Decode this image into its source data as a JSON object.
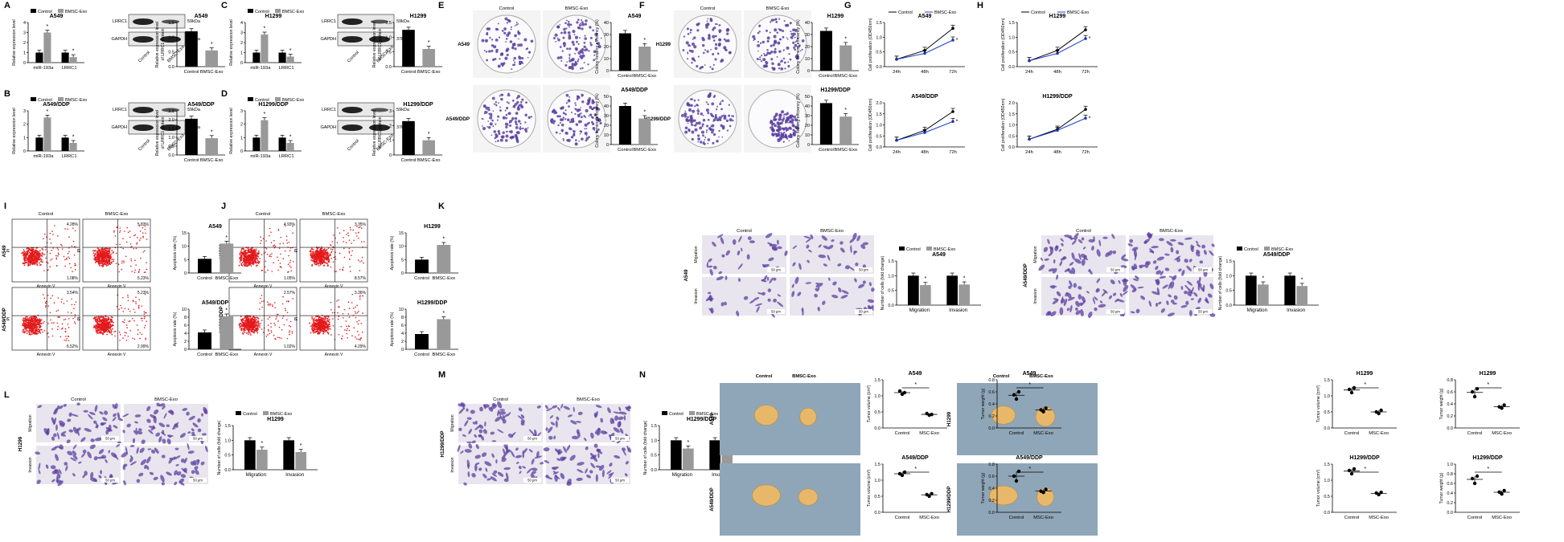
{
  "legend": {
    "control": "Control",
    "bmsc": "BMSC-Exo"
  },
  "panel_labels": [
    "A",
    "B",
    "C",
    "D",
    "E",
    "F",
    "G",
    "H",
    "I",
    "J",
    "K",
    "L",
    "M",
    "N"
  ],
  "chart_data": [
    {
      "id": "A_bar",
      "type": "bar",
      "title": "A549",
      "ylabel": "Relative expression level",
      "categories": [
        "miR-193a",
        "LRRC1"
      ],
      "series": [
        {
          "name": "Control",
          "values": [
            1.0,
            1.0
          ]
        },
        {
          "name": "BMSC-Exo",
          "values": [
            3.0,
            0.55
          ]
        }
      ],
      "ylim": [
        0,
        4
      ],
      "yticks": [
        "0",
        "1",
        "2",
        "3",
        "4"
      ]
    },
    {
      "id": "A_quant",
      "type": "bar",
      "title": "A549",
      "ylabel": "Relative expression level of LRRC1 protein",
      "categories": [
        "Control",
        "BMSC-Exo"
      ],
      "values": [
        1.2,
        0.55
      ],
      "ylim": [
        0,
        1.5
      ],
      "yticks": [
        "0.0",
        "0.5",
        "1.0",
        "1.5"
      ]
    },
    {
      "id": "B_bar",
      "type": "bar",
      "title": "A549/DDP",
      "ylabel": "Relative expression level",
      "categories": [
        "miR-193a",
        "LRRC1"
      ],
      "series": [
        {
          "name": "Control",
          "values": [
            1.0,
            1.0
          ]
        },
        {
          "name": "BMSC-Exo",
          "values": [
            2.5,
            0.6
          ]
        }
      ],
      "ylim": [
        0,
        3
      ],
      "yticks": [
        "0",
        "1",
        "2",
        "3"
      ]
    },
    {
      "id": "B_quant",
      "type": "bar",
      "title": "A549/DDP",
      "ylabel": "Relative expression level of LRRC1 protein",
      "categories": [
        "Control",
        "BMSC-Exo"
      ],
      "values": [
        2.05,
        0.95
      ],
      "ylim": [
        0,
        2.5
      ],
      "yticks": [
        "0.0",
        "0.5",
        "1.0",
        "1.5",
        "2.0",
        "2.5"
      ]
    },
    {
      "id": "C_bar",
      "type": "bar",
      "title": "H1299",
      "ylabel": "Relative expression level",
      "categories": [
        "miR-193a",
        "LRRC1"
      ],
      "series": [
        {
          "name": "Control",
          "values": [
            1.0,
            1.0
          ]
        },
        {
          "name": "BMSC-Exo",
          "values": [
            2.8,
            0.6
          ]
        }
      ],
      "ylim": [
        0,
        4
      ],
      "yticks": [
        "0",
        "1",
        "2",
        "3",
        "4"
      ]
    },
    {
      "id": "C_quant",
      "type": "bar",
      "title": "H1299",
      "ylabel": "Relative expression level of LRRC1 protein",
      "categories": [
        "Control",
        "BMSC-Exo"
      ],
      "values": [
        1.25,
        0.6
      ],
      "ylim": [
        0,
        1.5
      ],
      "yticks": [
        "0.0",
        "0.5",
        "1.0",
        "1.5"
      ]
    },
    {
      "id": "D_bar",
      "type": "bar",
      "title": "H1299/DDP",
      "ylabel": "Relative expression level",
      "categories": [
        "miR-193a",
        "LRRC1"
      ],
      "series": [
        {
          "name": "Control",
          "values": [
            1.0,
            1.0
          ]
        },
        {
          "name": "BMSC-Exo",
          "values": [
            2.3,
            0.6
          ]
        }
      ],
      "ylim": [
        0,
        3
      ],
      "yticks": [
        "0",
        "1",
        "2",
        "3"
      ]
    },
    {
      "id": "D_quant",
      "type": "bar",
      "title": "H1299/DDP",
      "ylabel": "Relative expression level of LRRC1 protein",
      "categories": [
        "Control",
        "BMSC-Exo"
      ],
      "values": [
        2.3,
        1.0
      ],
      "ylim": [
        0,
        3
      ],
      "yticks": [
        "0",
        "1",
        "2",
        "3"
      ]
    },
    {
      "id": "E_top",
      "type": "bar",
      "title": "A549",
      "ylabel": "Colony forming efficiency (%)",
      "categories": [
        "Control",
        "BMSC-Exo"
      ],
      "values": [
        31,
        20
      ],
      "ylim": [
        0,
        40
      ],
      "yticks": [
        "0",
        "10",
        "20",
        "30",
        "40"
      ]
    },
    {
      "id": "E_bot",
      "type": "bar",
      "title": "A549/DDP",
      "ylabel": "Colony forming efficiency (%)",
      "categories": [
        "Control",
        "BMSC-Exo"
      ],
      "values": [
        40,
        27
      ],
      "ylim": [
        0,
        50
      ],
      "yticks": [
        "0",
        "10",
        "20",
        "30",
        "40",
        "50"
      ]
    },
    {
      "id": "F_top",
      "type": "bar",
      "title": "H1299",
      "ylabel": "Colony forming efficiency (%)",
      "categories": [
        "Control",
        "BMSC-Exo"
      ],
      "values": [
        33,
        21
      ],
      "ylim": [
        0,
        40
      ],
      "yticks": [
        "0",
        "10",
        "20",
        "30",
        "40"
      ]
    },
    {
      "id": "F_bot",
      "type": "bar",
      "title": "H1299/DDP",
      "ylabel": "Colony forming efficiency (%)",
      "categories": [
        "Control",
        "BMSC-Exo"
      ],
      "values": [
        43,
        29
      ],
      "ylim": [
        0,
        50
      ],
      "yticks": [
        "0",
        "10",
        "20",
        "30",
        "40",
        "50"
      ]
    },
    {
      "id": "G_top",
      "type": "line",
      "title": "A549",
      "ylabel": "Cell proliferation (OD450nm)",
      "x": [
        "24h",
        "48h",
        "72h"
      ],
      "series": [
        {
          "name": "Control",
          "values": [
            0.25,
            0.55,
            1.3
          ]
        },
        {
          "name": "BMSC-Exo",
          "values": [
            0.25,
            0.45,
            0.9
          ]
        }
      ],
      "ylim": [
        0,
        1.5
      ],
      "yticks": [
        "0.0",
        "0.5",
        "1.0",
        "1.5"
      ]
    },
    {
      "id": "G_bot",
      "type": "line",
      "title": "A549/DDP",
      "ylabel": "Cell proliferation (OD450nm)",
      "x": [
        "24h",
        "48h",
        "72h"
      ],
      "series": [
        {
          "name": "Control",
          "values": [
            0.3,
            0.75,
            1.6
          ]
        },
        {
          "name": "BMSC-Exo",
          "values": [
            0.3,
            0.65,
            1.15
          ]
        }
      ],
      "ylim": [
        0,
        2.0
      ],
      "yticks": [
        "0.0",
        "0.5",
        "1.0",
        "1.5",
        "2.0"
      ]
    },
    {
      "id": "H_top",
      "type": "line",
      "title": "H1299",
      "ylabel": "Cell proliferation (OD450nm)",
      "x": [
        "24h",
        "48h",
        "72h"
      ],
      "series": [
        {
          "name": "Control",
          "values": [
            0.2,
            0.55,
            1.25
          ]
        },
        {
          "name": "BMSC-Exo",
          "values": [
            0.2,
            0.45,
            0.95
          ]
        }
      ],
      "ylim": [
        0,
        1.5
      ],
      "yticks": [
        "0.0",
        "0.5",
        "1.0",
        "1.5"
      ]
    },
    {
      "id": "H_bot",
      "type": "line",
      "title": "H1299/DDP",
      "ylabel": "Cell proliferation (OD450nm)",
      "x": [
        "24h",
        "48h",
        "72h"
      ],
      "series": [
        {
          "name": "Control",
          "values": [
            0.35,
            0.8,
            1.7
          ]
        },
        {
          "name": "BMSC-Exo",
          "values": [
            0.35,
            0.75,
            1.3
          ]
        }
      ],
      "ylim": [
        0,
        2.0
      ],
      "yticks": [
        "0.0",
        "0.5",
        "1.0",
        "1.5",
        "2.0"
      ]
    },
    {
      "id": "I_top",
      "type": "bar",
      "title": "A549",
      "ylabel": "Apoptosis rate (%)",
      "categories": [
        "Control",
        "BMSC-Exo"
      ],
      "values": [
        5.3,
        11
      ],
      "ylim": [
        0,
        15
      ],
      "yticks": [
        "0",
        "5",
        "10",
        "15"
      ]
    },
    {
      "id": "I_bot",
      "type": "bar",
      "title": "A549/DDP",
      "ylabel": "Apoptosis rate (%)",
      "categories": [
        "Control",
        "BMSC-Exo"
      ],
      "values": [
        4.2,
        8.2
      ],
      "ylim": [
        0,
        10
      ],
      "yticks": [
        "0",
        "2",
        "4",
        "6",
        "8",
        "10"
      ]
    },
    {
      "id": "J_top",
      "type": "bar",
      "title": "H1299",
      "ylabel": "Apoptosis rate (%)",
      "categories": [
        "Control",
        "BMSC-Exo"
      ],
      "values": [
        5.0,
        10.5
      ],
      "ylim": [
        0,
        15
      ],
      "yticks": [
        "0",
        "5",
        "10",
        "15"
      ]
    },
    {
      "id": "J_bot",
      "type": "bar",
      "title": "H1299/DDP",
      "ylabel": "Apoptosis rate (%)",
      "categories": [
        "Control",
        "BMSC-Exo"
      ],
      "values": [
        3.8,
        7.5
      ],
      "ylim": [
        0,
        10
      ],
      "yticks": [
        "0",
        "2",
        "4",
        "6",
        "8",
        "10"
      ]
    },
    {
      "id": "K_a549",
      "type": "bar",
      "title": "A549",
      "ylabel": "Number of cells (fold change)",
      "categories": [
        "Migration",
        "Invasion"
      ],
      "series": [
        {
          "name": "Control",
          "values": [
            1.0,
            1.0
          ]
        },
        {
          "name": "BMSC-Exo",
          "values": [
            0.68,
            0.7
          ]
        }
      ],
      "ylim": [
        0,
        1.5
      ],
      "yticks": [
        "0.0",
        "0.5",
        "1.0",
        "1.5"
      ]
    },
    {
      "id": "K_a549ddp",
      "type": "bar",
      "title": "A549/DDP",
      "ylabel": "Number of cells (fold change)",
      "categories": [
        "Migration",
        "Invasion"
      ],
      "series": [
        {
          "name": "Control",
          "values": [
            1.0,
            1.0
          ]
        },
        {
          "name": "BMSC-Exo",
          "values": [
            0.7,
            0.65
          ]
        }
      ],
      "ylim": [
        0,
        1.5
      ],
      "yticks": [
        "0.0",
        "0.5",
        "1.0",
        "1.5"
      ]
    },
    {
      "id": "L_h1299",
      "type": "bar",
      "title": "H1299",
      "ylabel": "Number of cells (fold change)",
      "categories": [
        "Migration",
        "Invasion"
      ],
      "series": [
        {
          "name": "Control",
          "values": [
            1.0,
            1.0
          ]
        },
        {
          "name": "BMSC-Exo",
          "values": [
            0.68,
            0.6
          ]
        }
      ],
      "ylim": [
        0,
        1.5
      ],
      "yticks": [
        "0.0",
        "0.5",
        "1.0",
        "1.5"
      ]
    },
    {
      "id": "L_h1299ddp",
      "type": "bar",
      "title": "H1299/DDP",
      "ylabel": "Number of cells (fold change)",
      "categories": [
        "Migration",
        "Invasion"
      ],
      "series": [
        {
          "name": "Control",
          "values": [
            1.0,
            1.0
          ]
        },
        {
          "name": "BMSC-Exo",
          "values": [
            0.72,
            0.7
          ]
        }
      ],
      "ylim": [
        0,
        1.5
      ],
      "yticks": [
        "0.0",
        "0.5",
        "1.0",
        "1.5"
      ]
    },
    {
      "id": "M_vol1",
      "type": "scatter",
      "title": "A549",
      "ylabel": "Tumor volume (cm³)",
      "categories": [
        "Control",
        "MSC-Exo"
      ],
      "points": [
        [
          1.15,
          1.05,
          1.1
        ],
        [
          0.45,
          0.4,
          0.42
        ]
      ],
      "ylim": [
        0,
        1.5
      ],
      "yticks": [
        "0.0",
        "0.5",
        "1.0",
        "1.5"
      ]
    },
    {
      "id": "M_wt1",
      "type": "scatter",
      "title": "A549",
      "ylabel": "Tumor weight (g)",
      "categories": [
        "Control",
        "MSC-Exo"
      ],
      "points": [
        [
          0.55,
          0.48,
          0.6
        ],
        [
          0.3,
          0.27,
          0.33
        ]
      ],
      "ylim": [
        0,
        0.8
      ],
      "yticks": [
        "0.0",
        "0.2",
        "0.4",
        "0.6",
        "0.8"
      ]
    },
    {
      "id": "M_vol2",
      "type": "scatter",
      "title": "A549/DDP",
      "ylabel": "Tumor volume (cm³)",
      "categories": [
        "Control",
        "MSC-Exo"
      ],
      "points": [
        [
          1.2,
          1.15,
          1.25
        ],
        [
          0.55,
          0.5,
          0.58
        ]
      ],
      "ylim": [
        0,
        1.5
      ],
      "yticks": [
        "0.0",
        "0.5",
        "1.0",
        "1.5"
      ]
    },
    {
      "id": "M_wt2",
      "type": "scatter",
      "title": "A549/DDP",
      "ylabel": "Tumor weight (g)",
      "categories": [
        "Control",
        "MSC-Exo"
      ],
      "points": [
        [
          0.6,
          0.52,
          0.68
        ],
        [
          0.35,
          0.33,
          0.38
        ]
      ],
      "ylim": [
        0,
        0.8
      ],
      "yticks": [
        "0.0",
        "0.2",
        "0.4",
        "0.6",
        "0.8"
      ]
    },
    {
      "id": "N_vol1",
      "type": "scatter",
      "title": "H1299",
      "ylabel": "Tumor volume (cm³)",
      "categories": [
        "Control",
        "MSC-Exo"
      ],
      "points": [
        [
          1.2,
          1.1,
          1.25
        ],
        [
          0.5,
          0.45,
          0.55
        ]
      ],
      "ylim": [
        0,
        1.5
      ],
      "yticks": [
        "0.0",
        "0.5",
        "1.0",
        "1.5"
      ]
    },
    {
      "id": "N_wt1",
      "type": "scatter",
      "title": "H1299",
      "ylabel": "Tumor weight (g)",
      "categories": [
        "Control",
        "MSC-Exo"
      ],
      "points": [
        [
          0.6,
          0.52,
          0.65
        ],
        [
          0.35,
          0.33,
          0.38
        ]
      ],
      "ylim": [
        0,
        0.8
      ],
      "yticks": [
        "0.0",
        "0.2",
        "0.4",
        "0.6",
        "0.8"
      ]
    },
    {
      "id": "N_vol2",
      "type": "scatter",
      "title": "H1299/DDP",
      "ylabel": "Tumor volume (cm³)",
      "categories": [
        "Control",
        "MSC-Exo"
      ],
      "points": [
        [
          1.3,
          1.2,
          1.35
        ],
        [
          0.6,
          0.55,
          0.62
        ]
      ],
      "ylim": [
        0,
        1.5
      ],
      "yticks": [
        "0.0",
        "0.5",
        "1.0",
        "1.5"
      ]
    },
    {
      "id": "N_wt2",
      "type": "scatter",
      "title": "H1299/DDP",
      "ylabel": "Tumor weight (g)",
      "categories": [
        "Control",
        "MSC-Exo"
      ],
      "points": [
        [
          0.7,
          0.6,
          0.75
        ],
        [
          0.42,
          0.38,
          0.45
        ]
      ],
      "ylim": [
        0,
        1.0
      ],
      "yticks": [
        "0.0",
        "0.2",
        "0.4",
        "0.6",
        "0.8",
        "1.0"
      ]
    }
  ],
  "wb": {
    "lrrc1": "LRRC1",
    "gapdh": "GAPDH",
    "kda1": "59kDa",
    "kda2": "37kDa",
    "lanes": [
      "Control",
      "BMSC-Exo"
    ]
  },
  "colony": {
    "E_rows": [
      "A549",
      "A549/DDP"
    ],
    "F_rows": [
      "H1299",
      "H1299/DDP"
    ],
    "cols": [
      "Control",
      "BMSC-Exo"
    ]
  },
  "flow": {
    "cols": [
      "Control",
      "BMSC-Exo"
    ],
    "xlabel": "Annexin V",
    "ylabel": "PI",
    "I_rows": [
      "A549",
      "A549/DDP"
    ],
    "J_rows": [
      "H1299",
      "H1299/DDP"
    ],
    "I_pct": [
      [
        "4.28%",
        "1.08%"
      ],
      [
        "5.83%",
        "5.23%"
      ],
      [
        "3.54%",
        "6.52%"
      ],
      [
        "5.23%",
        "2.99%"
      ]
    ],
    "J_pct": [
      [
        "4.93%",
        "1.05%"
      ],
      [
        "3.35%",
        "8.57%"
      ],
      [
        "2.57%",
        "1.02%"
      ],
      [
        "3.36%",
        "4.29%"
      ]
    ]
  },
  "transwell": {
    "cols": [
      "Control",
      "BMSC-Exo"
    ],
    "rows": [
      "Migration",
      "Invasion"
    ],
    "scale": "50 μm",
    "K_lines": [
      "A549",
      "A549/DDP"
    ],
    "L_lines": [
      "H1299",
      "H1299/DDP"
    ]
  },
  "tumor": {
    "cols_M": [
      "Control",
      "BMSC-Exo"
    ],
    "cols_N": [
      "Control",
      "BMSC-Exo"
    ],
    "M_rows": [
      "A549",
      "A549/DDP"
    ],
    "N_rows": [
      "H1299",
      "H1299/DDP"
    ]
  },
  "colors": {
    "control": "#000000",
    "bmsc_bar": "#999999",
    "bmsc_line": "#1f3fd0",
    "flow_dot": "#e31a1c",
    "stain": "#5b3fa0"
  }
}
